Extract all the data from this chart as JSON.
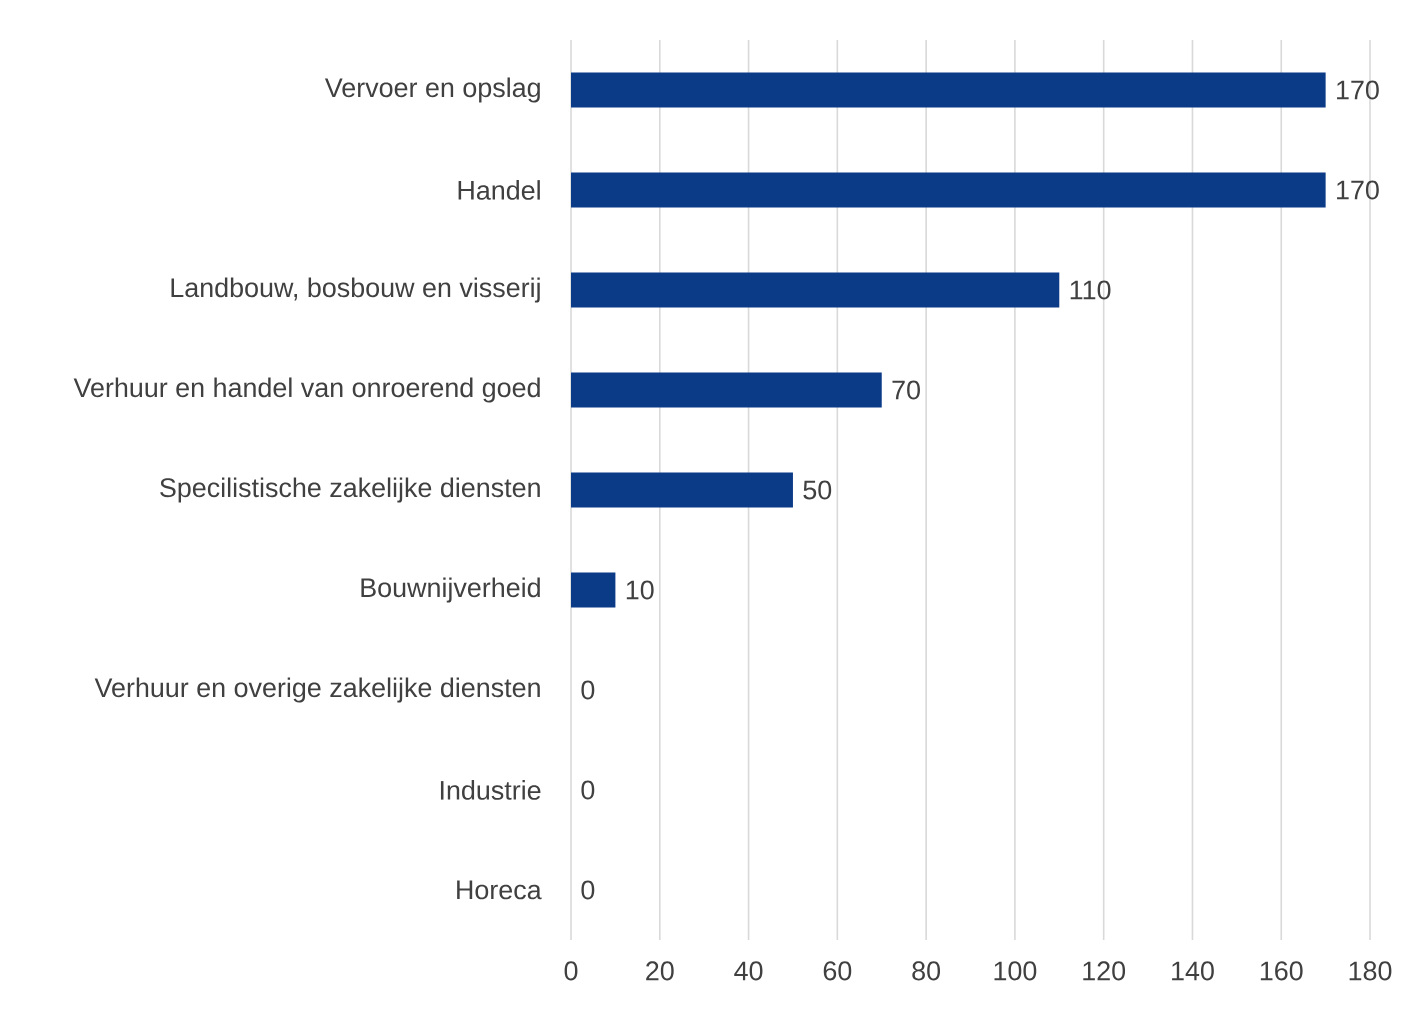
{
  "chart_data": {
    "type": "bar",
    "orientation": "horizontal",
    "categories": [
      "Vervoer en opslag",
      "Handel",
      "Landbouw, bosbouw en visserij",
      "Verhuur en handel van onroerend goed",
      "Specilistische zakelijke diensten",
      "Bouwnijverheid",
      "Verhuur en overige zakelijke diensten",
      "Industrie",
      "Horeca"
    ],
    "values": [
      170,
      170,
      110,
      70,
      50,
      10,
      0,
      0,
      0
    ],
    "color": "#0b3a87",
    "xlim": [
      0,
      180
    ],
    "xticks": [
      0,
      20,
      40,
      60,
      80,
      100,
      120,
      140,
      160,
      180
    ],
    "grid": "x",
    "data_labels": true
  }
}
